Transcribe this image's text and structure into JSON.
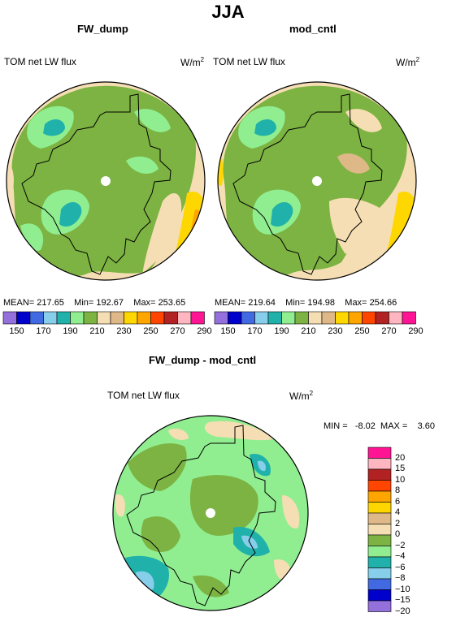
{
  "main_title": "JJA",
  "panels": [
    {
      "title": "FW_dump",
      "variable": "TOM net LW flux",
      "units": "W/m",
      "units_sup": "2",
      "stats": {
        "mean_label": "MEAN=",
        "mean": "217.65",
        "min_label": "Min=",
        "min": "192.67",
        "max_label": "Max=",
        "max": "253.65"
      }
    },
    {
      "title": "mod_cntl",
      "variable": "TOM net LW flux",
      "units": "W/m",
      "units_sup": "2",
      "stats": {
        "mean_label": "MEAN=",
        "mean": "219.64",
        "min_label": "Min=",
        "min": "194.98",
        "max_label": "Max=",
        "max": "254.66"
      }
    }
  ],
  "top_colorbar": {
    "colors": [
      "#9370db",
      "#0000cd",
      "#4169e1",
      "#87ceeb",
      "#20b2aa",
      "#90ee90",
      "#7cb342",
      "#f5deb3",
      "#deb887",
      "#ffd700",
      "#ffa500",
      "#ff4500",
      "#b22222",
      "#ffb6c1",
      "#ff1493"
    ],
    "labels": [
      "150",
      "170",
      "190",
      "210",
      "230",
      "250",
      "270",
      "290"
    ]
  },
  "diff_panel": {
    "title": "FW_dump - mod_cntl",
    "variable": "TOM net LW flux",
    "units": "W/m",
    "units_sup": "2",
    "stats": {
      "min_label": "MIN =",
      "min": "-8.02",
      "max_label": "MAX =",
      "max": "3.60"
    }
  },
  "diff_colorbar": {
    "colors": [
      "#9370db",
      "#0000cd",
      "#4169e1",
      "#87ceeb",
      "#20b2aa",
      "#90ee90",
      "#7cb342",
      "#f5deb3",
      "#deb887",
      "#ffd700",
      "#ffa500",
      "#ff4500",
      "#b22222",
      "#ffb6c1",
      "#ff1493"
    ],
    "labels": [
      "20",
      "15",
      "10",
      "8",
      "6",
      "4",
      "2",
      "0",
      "−2",
      "−4",
      "−6",
      "−8",
      "−10",
      "−15",
      "−20"
    ]
  }
}
